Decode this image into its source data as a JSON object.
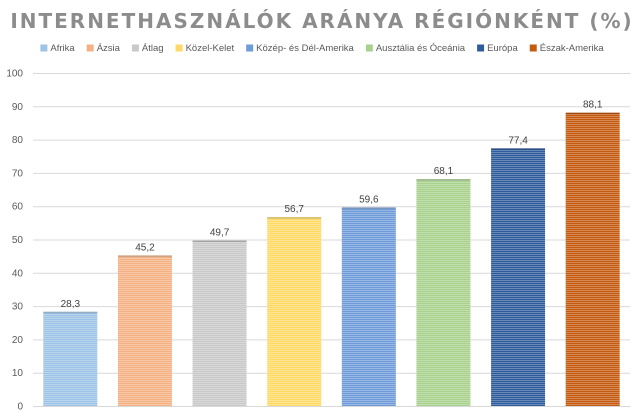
{
  "chart_data": {
    "type": "bar",
    "title": "INTERNETHASZNÁLÓK ARÁNYA RÉGIÓNKÉNT (%)",
    "categories": [
      "Afrika",
      "Ázsia",
      "Átlag",
      "Közel-Kelet",
      "Közép- és Dél-Amerika",
      "Ausztália és Óceánia",
      "Európa",
      "Észak-Amerika"
    ],
    "values": [
      28.3,
      45.2,
      49.7,
      56.7,
      59.6,
      68.1,
      77.4,
      88.1
    ],
    "data_labels": [
      "28,3",
      "45,2",
      "49,7",
      "56,7",
      "59,6",
      "68,1",
      "77,4",
      "88,1"
    ],
    "colors": [
      "#9dc3e6",
      "#f4b183",
      "#c9c9c9",
      "#ffd966",
      "#6f9bd9",
      "#a9d18e",
      "#2e5c9c",
      "#c55a11"
    ],
    "ylim": [
      0,
      100
    ],
    "yticks": [
      0,
      10,
      20,
      30,
      40,
      50,
      60,
      70,
      80,
      90,
      100
    ],
    "ytick_labels": [
      "0",
      "10",
      "20",
      "30",
      "40",
      "50",
      "60",
      "70",
      "80",
      "90",
      "100"
    ],
    "grid": true,
    "legend_position": "top",
    "xlabel": "",
    "ylabel": ""
  }
}
